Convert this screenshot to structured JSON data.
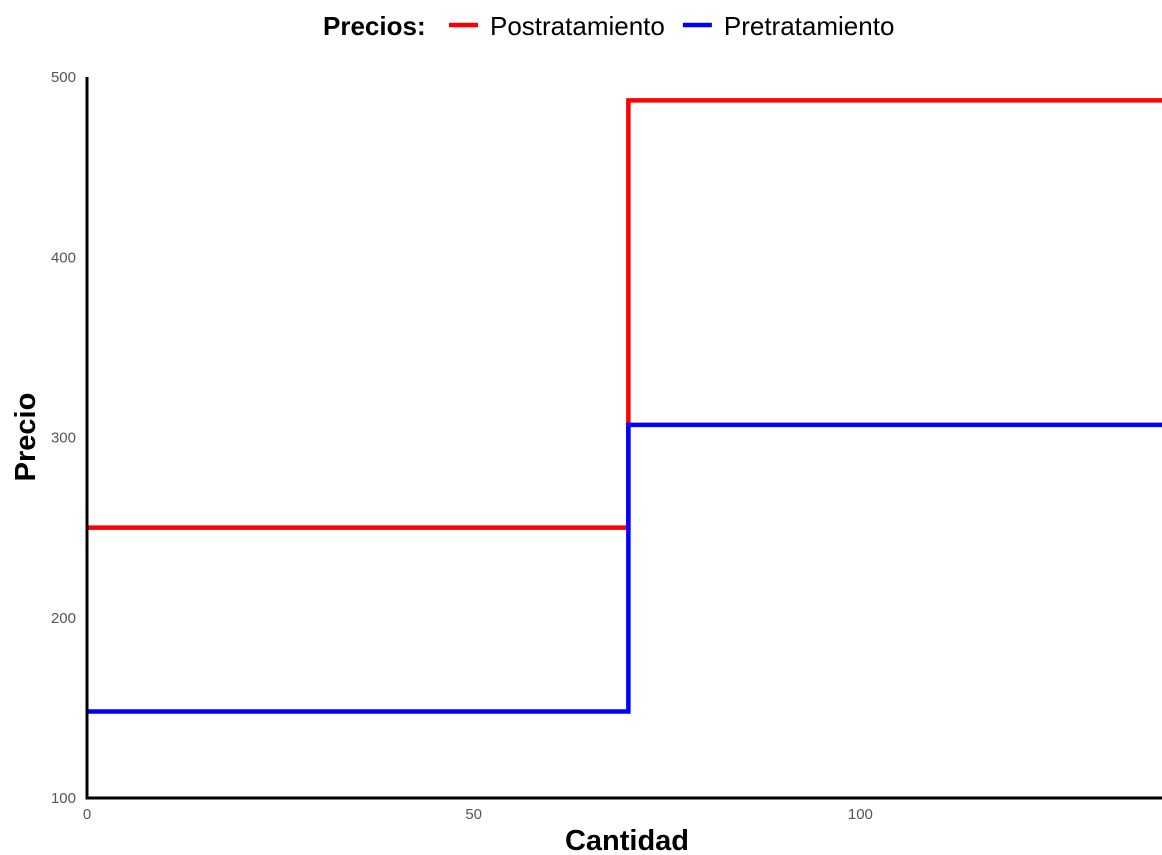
{
  "chart_data": {
    "type": "line",
    "step": "hv",
    "legend": {
      "title": "Precios:",
      "position": "top"
    },
    "xlabel": "Cantidad",
    "ylabel": "Precio",
    "xlim": [
      0,
      139
    ],
    "ylim": [
      100,
      500
    ],
    "x_ticks": [
      0,
      50,
      100
    ],
    "y_ticks": [
      100,
      200,
      300,
      400,
      500
    ],
    "grid": false,
    "series": [
      {
        "name": "Postratamiento",
        "color": "#ff0000",
        "x": [
          0,
          70,
          139
        ],
        "y": [
          250,
          487,
          487
        ]
      },
      {
        "name": "Pretratamiento",
        "color": "#0000ff",
        "x": [
          0,
          70,
          139
        ],
        "y": [
          148,
          307,
          307
        ]
      }
    ]
  }
}
